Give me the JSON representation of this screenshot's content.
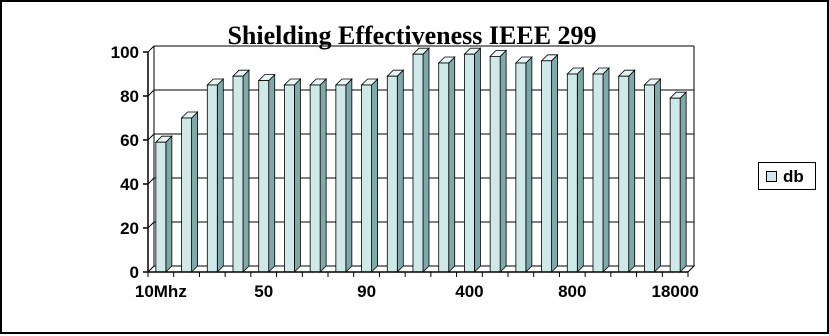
{
  "chart_data": {
    "type": "bar",
    "title": "Shielding Effectiveness IEEE 299",
    "xlabel": "",
    "ylabel": "",
    "ylim": [
      0,
      100
    ],
    "yticks": [
      0,
      20,
      40,
      60,
      80,
      100
    ],
    "categories": [
      "10Mhz",
      "",
      "",
      "",
      "50",
      "",
      "",
      "",
      "90",
      "",
      "",
      "",
      "400",
      "",
      "",
      "",
      "800",
      "",
      "",
      "",
      "18000"
    ],
    "series": [
      {
        "name": "db",
        "values": [
          59,
          70,
          85,
          89,
          87,
          85,
          85,
          85,
          85,
          89,
          99,
          95,
          99,
          98,
          95,
          96,
          90,
          90,
          89,
          85,
          79
        ]
      }
    ],
    "grid": true,
    "legend_position": "right",
    "bar_color": "#cfe8e8",
    "bar_dark_color": "#7fa9a9"
  }
}
